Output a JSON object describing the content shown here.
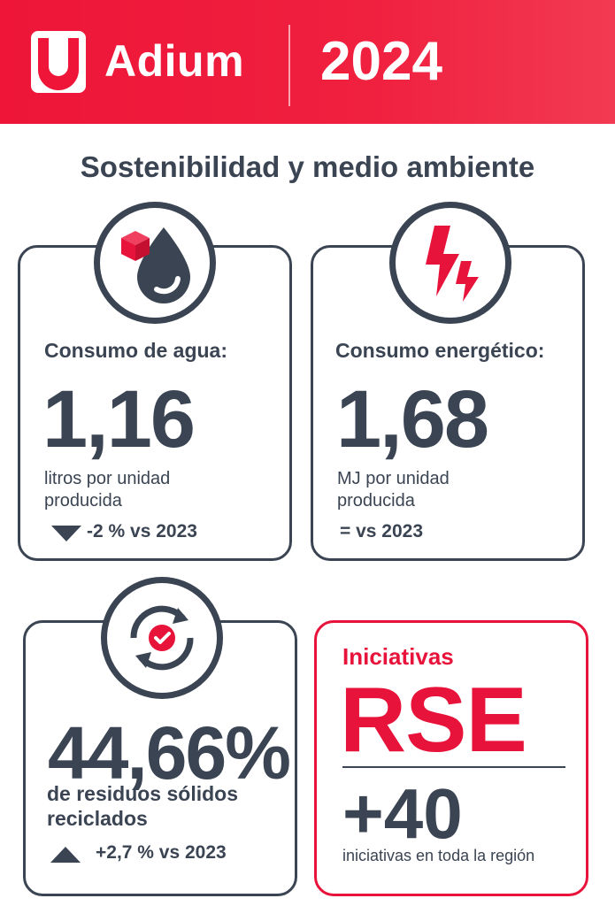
{
  "header": {
    "brand": "Adium",
    "year": "2024",
    "colors": {
      "primary_red": "#ee1538",
      "dark": "#3a4452"
    }
  },
  "section_title": "Sostenibilidad y medio ambiente",
  "water": {
    "label": "Consumo de agua:",
    "value": "1,16",
    "unit_line1": "litros por unidad",
    "unit_line2": "producida",
    "comparison": "-2 % vs 2023",
    "trend": "down",
    "icon": "water-drop-box-icon"
  },
  "energy": {
    "label": "Consumo energético:",
    "value": "1,68",
    "unit_line1": "MJ por unidad",
    "unit_line2": "producida",
    "comparison": "= vs 2023",
    "icon": "lightning-icon"
  },
  "waste": {
    "value": "44,66%",
    "caption_line1": "de residuos sólidos",
    "caption_line2": "reciclados",
    "comparison": "+2,7 % vs 2023",
    "trend": "up",
    "icon": "recycle-check-icon"
  },
  "rse": {
    "title": "Iniciativas",
    "big": "RSE",
    "count": "+40",
    "caption": "iniciativas en toda la región"
  }
}
